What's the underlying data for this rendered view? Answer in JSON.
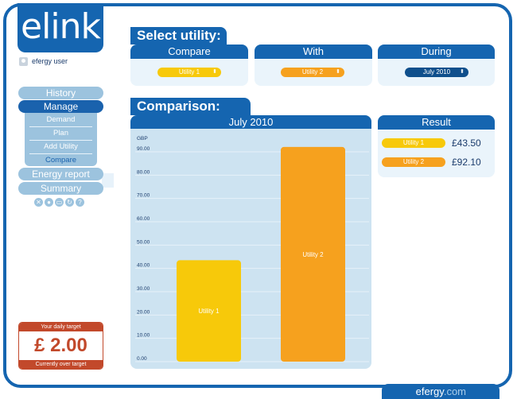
{
  "app": {
    "logo_text": "elink",
    "user_name": "efergy user"
  },
  "nav": {
    "history": "History",
    "manage": "Manage",
    "submenu": [
      "Demand",
      "Plan",
      "Add Utility",
      "Compare"
    ],
    "energy_report": "Energy report",
    "summary": "Summary",
    "toolbar_icons": [
      "close-icon",
      "settings-icon",
      "monitor-icon",
      "refresh-icon",
      "help-icon"
    ]
  },
  "daily_target": {
    "title": "Your daily target",
    "value": "£ 2.00",
    "status": "Currently over target"
  },
  "select_utility": {
    "title": "Select utility:",
    "compare": {
      "label": "Compare",
      "value": "Utility 1"
    },
    "with": {
      "label": "With",
      "value": "Utility 2"
    },
    "during": {
      "label": "During",
      "value": "July 2010"
    }
  },
  "comparison": {
    "title": "Comparison:",
    "period": "July 2010"
  },
  "result": {
    "title": "Result",
    "items": [
      {
        "name": "Utility 1",
        "value": "£43.50"
      },
      {
        "name": "Utility 2",
        "value": "£92.10"
      }
    ]
  },
  "footer": {
    "brand": "efergy",
    "suffix": ".com"
  },
  "colors": {
    "brand_blue": "#1565b0",
    "utility1": "#f7c90a",
    "utility2": "#f6a11e",
    "target_red": "#c2492b"
  },
  "chart_data": {
    "type": "bar",
    "ylabel": "GBP",
    "ylim": [
      0,
      90
    ],
    "yticks": [
      "0.00",
      "10.00",
      "20.00",
      "30.00",
      "40.00",
      "50.00",
      "60.00",
      "70.00",
      "80.00",
      "90.00"
    ],
    "categories": [
      "Utility 1",
      "Utility 2"
    ],
    "values": [
      43.5,
      92.1
    ],
    "colors": [
      "#f7c90a",
      "#f6a11e"
    ],
    "grid": true
  }
}
